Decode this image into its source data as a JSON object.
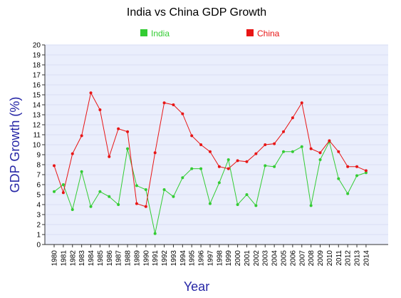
{
  "chart_data": {
    "type": "line",
    "title": "India vs China GDP Growth",
    "xlabel": "Year",
    "ylabel": "GDP Growth (%)",
    "ylim": [
      0,
      20
    ],
    "yticks": [
      0,
      1,
      2,
      3,
      4,
      5,
      6,
      7,
      8,
      9,
      10,
      11,
      12,
      13,
      14,
      15,
      16,
      17,
      18,
      19,
      20
    ],
    "grid": true,
    "legend_position": "top",
    "categories": [
      "1980",
      "1981",
      "1982",
      "1983",
      "1984",
      "1985",
      "1986",
      "1987",
      "1988",
      "1989",
      "1990",
      "1991",
      "1992",
      "1993",
      "1994",
      "1995",
      "1996",
      "1997",
      "1998",
      "1999",
      "2000",
      "2001",
      "2002",
      "2003",
      "2004",
      "2005",
      "2006",
      "2007",
      "2008",
      "2009",
      "2010",
      "2011",
      "2012",
      "2013",
      "2014"
    ],
    "series": [
      {
        "name": "India",
        "color": "#33cc33",
        "values": [
          5.3,
          6.0,
          3.5,
          7.3,
          3.8,
          5.3,
          4.8,
          4.0,
          9.6,
          5.9,
          5.5,
          1.1,
          5.5,
          4.8,
          6.7,
          7.6,
          7.6,
          4.1,
          6.2,
          8.5,
          4.0,
          5.0,
          3.9,
          7.9,
          7.8,
          9.3,
          9.3,
          9.8,
          3.9,
          8.5,
          10.3,
          6.6,
          5.1,
          6.9,
          7.2
        ]
      },
      {
        "name": "China",
        "color": "#e81515",
        "values": [
          7.9,
          5.2,
          9.1,
          10.9,
          15.2,
          13.5,
          8.8,
          11.6,
          11.3,
          4.1,
          3.8,
          9.2,
          14.2,
          14.0,
          13.1,
          10.9,
          10.0,
          9.3,
          7.8,
          7.6,
          8.4,
          8.3,
          9.1,
          10.0,
          10.1,
          11.3,
          12.7,
          14.2,
          9.6,
          9.2,
          10.4,
          9.3,
          7.8,
          7.8,
          7.4
        ]
      }
    ]
  },
  "colors": {
    "plot_background": "#eaeefc",
    "grid": "#d9dff5",
    "axis_title": "#2626a6"
  }
}
